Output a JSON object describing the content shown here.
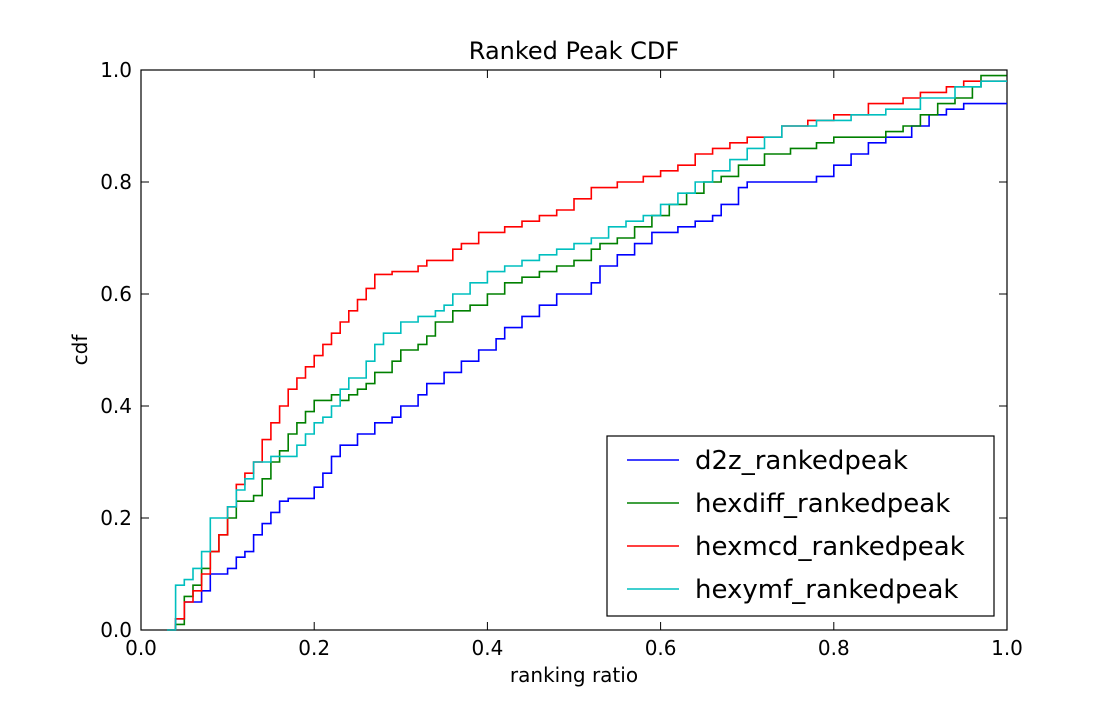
{
  "chart_data": {
    "type": "line",
    "title": "Ranked Peak CDF",
    "xlabel": "ranking ratio",
    "ylabel": "cdf",
    "xlim": [
      0.0,
      1.0
    ],
    "ylim": [
      0.0,
      1.0
    ],
    "x_ticks": [
      "0.0",
      "0.2",
      "0.4",
      "0.6",
      "0.8",
      "1.0"
    ],
    "y_ticks": [
      "0.0",
      "0.2",
      "0.4",
      "0.6",
      "0.8",
      "1.0"
    ],
    "grid": false,
    "legend_position": "lower-right",
    "step_style": "post",
    "series": [
      {
        "name": "d2z_rankedpeak",
        "color": "#0000ff",
        "points": [
          [
            0.03,
            0.0
          ],
          [
            0.04,
            0.02
          ],
          [
            0.05,
            0.05
          ],
          [
            0.07,
            0.07
          ],
          [
            0.08,
            0.1
          ],
          [
            0.1,
            0.11
          ],
          [
            0.11,
            0.13
          ],
          [
            0.12,
            0.14
          ],
          [
            0.13,
            0.17
          ],
          [
            0.14,
            0.19
          ],
          [
            0.15,
            0.21
          ],
          [
            0.16,
            0.23
          ],
          [
            0.17,
            0.235
          ],
          [
            0.2,
            0.255
          ],
          [
            0.21,
            0.28
          ],
          [
            0.22,
            0.31
          ],
          [
            0.23,
            0.33
          ],
          [
            0.25,
            0.35
          ],
          [
            0.27,
            0.37
          ],
          [
            0.29,
            0.38
          ],
          [
            0.3,
            0.4
          ],
          [
            0.32,
            0.42
          ],
          [
            0.33,
            0.44
          ],
          [
            0.35,
            0.46
          ],
          [
            0.37,
            0.48
          ],
          [
            0.39,
            0.5
          ],
          [
            0.41,
            0.52
          ],
          [
            0.42,
            0.54
          ],
          [
            0.44,
            0.56
          ],
          [
            0.46,
            0.58
          ],
          [
            0.48,
            0.6
          ],
          [
            0.52,
            0.62
          ],
          [
            0.53,
            0.65
          ],
          [
            0.55,
            0.67
          ],
          [
            0.57,
            0.69
          ],
          [
            0.59,
            0.71
          ],
          [
            0.62,
            0.72
          ],
          [
            0.64,
            0.73
          ],
          [
            0.66,
            0.74
          ],
          [
            0.67,
            0.76
          ],
          [
            0.69,
            0.79
          ],
          [
            0.7,
            0.8
          ],
          [
            0.78,
            0.81
          ],
          [
            0.8,
            0.83
          ],
          [
            0.82,
            0.85
          ],
          [
            0.84,
            0.87
          ],
          [
            0.86,
            0.88
          ],
          [
            0.89,
            0.9
          ],
          [
            0.91,
            0.92
          ],
          [
            0.93,
            0.93
          ],
          [
            0.95,
            0.94
          ],
          [
            1.0,
            0.94
          ]
        ]
      },
      {
        "name": "hexdiff_rankedpeak",
        "color": "#008000",
        "points": [
          [
            0.03,
            0.0
          ],
          [
            0.04,
            0.01
          ],
          [
            0.05,
            0.06
          ],
          [
            0.06,
            0.08
          ],
          [
            0.07,
            0.11
          ],
          [
            0.08,
            0.14
          ],
          [
            0.09,
            0.17
          ],
          [
            0.1,
            0.2
          ],
          [
            0.11,
            0.23
          ],
          [
            0.13,
            0.24
          ],
          [
            0.14,
            0.27
          ],
          [
            0.15,
            0.3
          ],
          [
            0.16,
            0.32
          ],
          [
            0.17,
            0.35
          ],
          [
            0.18,
            0.37
          ],
          [
            0.19,
            0.39
          ],
          [
            0.2,
            0.41
          ],
          [
            0.22,
            0.42
          ],
          [
            0.23,
            0.41
          ],
          [
            0.24,
            0.42
          ],
          [
            0.25,
            0.43
          ],
          [
            0.26,
            0.44
          ],
          [
            0.27,
            0.46
          ],
          [
            0.29,
            0.48
          ],
          [
            0.3,
            0.5
          ],
          [
            0.32,
            0.51
          ],
          [
            0.33,
            0.525
          ],
          [
            0.34,
            0.55
          ],
          [
            0.36,
            0.57
          ],
          [
            0.38,
            0.58
          ],
          [
            0.4,
            0.6
          ],
          [
            0.42,
            0.62
          ],
          [
            0.44,
            0.63
          ],
          [
            0.46,
            0.64
          ],
          [
            0.48,
            0.65
          ],
          [
            0.5,
            0.66
          ],
          [
            0.52,
            0.68
          ],
          [
            0.53,
            0.69
          ],
          [
            0.55,
            0.7
          ],
          [
            0.57,
            0.72
          ],
          [
            0.59,
            0.74
          ],
          [
            0.61,
            0.76
          ],
          [
            0.63,
            0.78
          ],
          [
            0.65,
            0.8
          ],
          [
            0.67,
            0.81
          ],
          [
            0.69,
            0.83
          ],
          [
            0.72,
            0.85
          ],
          [
            0.75,
            0.86
          ],
          [
            0.78,
            0.87
          ],
          [
            0.8,
            0.88
          ],
          [
            0.84,
            0.88
          ],
          [
            0.86,
            0.89
          ],
          [
            0.88,
            0.9
          ],
          [
            0.9,
            0.92
          ],
          [
            0.92,
            0.94
          ],
          [
            0.94,
            0.95
          ],
          [
            0.96,
            0.97
          ],
          [
            0.97,
            0.99
          ],
          [
            1.0,
            0.99
          ]
        ]
      },
      {
        "name": "hexmcd_rankedpeak",
        "color": "#ff0000",
        "points": [
          [
            0.03,
            0.0
          ],
          [
            0.04,
            0.02
          ],
          [
            0.05,
            0.05
          ],
          [
            0.06,
            0.07
          ],
          [
            0.07,
            0.1
          ],
          [
            0.08,
            0.14
          ],
          [
            0.09,
            0.17
          ],
          [
            0.1,
            0.22
          ],
          [
            0.11,
            0.26
          ],
          [
            0.12,
            0.28
          ],
          [
            0.13,
            0.3
          ],
          [
            0.14,
            0.34
          ],
          [
            0.15,
            0.37
          ],
          [
            0.16,
            0.4
          ],
          [
            0.17,
            0.43
          ],
          [
            0.18,
            0.45
          ],
          [
            0.19,
            0.47
          ],
          [
            0.2,
            0.49
          ],
          [
            0.21,
            0.51
          ],
          [
            0.22,
            0.53
          ],
          [
            0.23,
            0.55
          ],
          [
            0.24,
            0.57
          ],
          [
            0.25,
            0.59
          ],
          [
            0.26,
            0.61
          ],
          [
            0.27,
            0.635
          ],
          [
            0.29,
            0.64
          ],
          [
            0.32,
            0.65
          ],
          [
            0.33,
            0.66
          ],
          [
            0.36,
            0.68
          ],
          [
            0.37,
            0.69
          ],
          [
            0.39,
            0.71
          ],
          [
            0.42,
            0.72
          ],
          [
            0.44,
            0.73
          ],
          [
            0.46,
            0.74
          ],
          [
            0.48,
            0.75
          ],
          [
            0.5,
            0.77
          ],
          [
            0.52,
            0.79
          ],
          [
            0.55,
            0.8
          ],
          [
            0.58,
            0.81
          ],
          [
            0.6,
            0.82
          ],
          [
            0.62,
            0.83
          ],
          [
            0.64,
            0.85
          ],
          [
            0.66,
            0.86
          ],
          [
            0.68,
            0.87
          ],
          [
            0.7,
            0.88
          ],
          [
            0.74,
            0.9
          ],
          [
            0.77,
            0.91
          ],
          [
            0.8,
            0.92
          ],
          [
            0.84,
            0.94
          ],
          [
            0.88,
            0.95
          ],
          [
            0.9,
            0.96
          ],
          [
            0.93,
            0.97
          ],
          [
            0.95,
            0.98
          ],
          [
            1.0,
            0.98
          ]
        ]
      },
      {
        "name": "hexymf_rankedpeak",
        "color": "#00bfbf",
        "points": [
          [
            0.03,
            0.0
          ],
          [
            0.04,
            0.08
          ],
          [
            0.05,
            0.09
          ],
          [
            0.06,
            0.11
          ],
          [
            0.07,
            0.14
          ],
          [
            0.08,
            0.2
          ],
          [
            0.09,
            0.2
          ],
          [
            0.1,
            0.22
          ],
          [
            0.11,
            0.25
          ],
          [
            0.12,
            0.27
          ],
          [
            0.13,
            0.3
          ],
          [
            0.15,
            0.31
          ],
          [
            0.18,
            0.33
          ],
          [
            0.19,
            0.35
          ],
          [
            0.2,
            0.37
          ],
          [
            0.21,
            0.38
          ],
          [
            0.22,
            0.4
          ],
          [
            0.23,
            0.43
          ],
          [
            0.24,
            0.45
          ],
          [
            0.26,
            0.48
          ],
          [
            0.27,
            0.51
          ],
          [
            0.28,
            0.53
          ],
          [
            0.3,
            0.55
          ],
          [
            0.32,
            0.56
          ],
          [
            0.34,
            0.57
          ],
          [
            0.35,
            0.58
          ],
          [
            0.36,
            0.6
          ],
          [
            0.38,
            0.62
          ],
          [
            0.4,
            0.64
          ],
          [
            0.42,
            0.65
          ],
          [
            0.44,
            0.66
          ],
          [
            0.46,
            0.67
          ],
          [
            0.48,
            0.68
          ],
          [
            0.5,
            0.69
          ],
          [
            0.52,
            0.7
          ],
          [
            0.54,
            0.72
          ],
          [
            0.56,
            0.73
          ],
          [
            0.58,
            0.74
          ],
          [
            0.6,
            0.76
          ],
          [
            0.62,
            0.78
          ],
          [
            0.64,
            0.8
          ],
          [
            0.66,
            0.82
          ],
          [
            0.68,
            0.84
          ],
          [
            0.7,
            0.86
          ],
          [
            0.72,
            0.88
          ],
          [
            0.74,
            0.9
          ],
          [
            0.78,
            0.91
          ],
          [
            0.82,
            0.92
          ],
          [
            0.86,
            0.93
          ],
          [
            0.9,
            0.95
          ],
          [
            0.94,
            0.97
          ],
          [
            0.97,
            0.98
          ],
          [
            1.0,
            0.98
          ]
        ]
      }
    ]
  }
}
